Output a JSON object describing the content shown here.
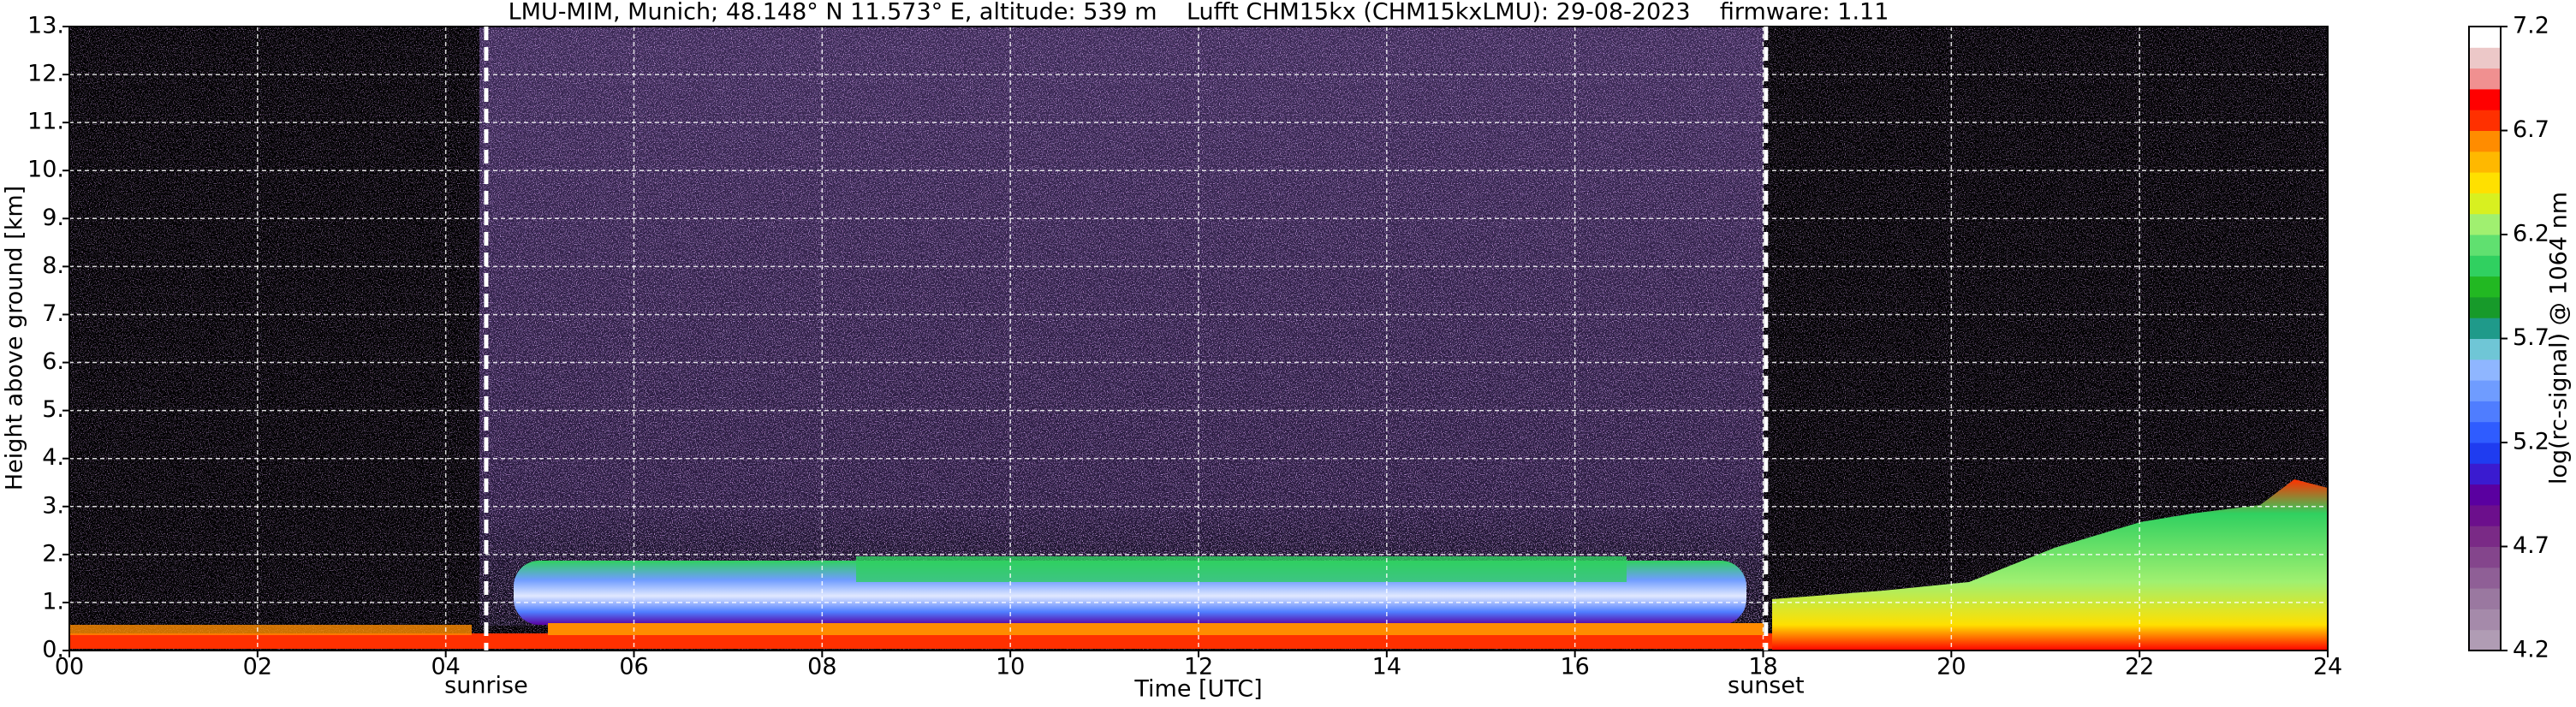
{
  "chart_data": {
    "type": "heatmap",
    "title": "LMU-MIM, Munich; 48.148° N 11.573° E, altitude: 539 m    Lufft CHM15kx (CHM15kxLMU): 29-08-2023    firmware: 1.11",
    "xlabel": "Time [UTC]",
    "ylabel": "Height above ground [km]",
    "xlim": [
      0,
      24
    ],
    "xticks": [
      {
        "value": 0,
        "label": "00"
      },
      {
        "value": 2,
        "label": "02"
      },
      {
        "value": 4,
        "label": "04"
      },
      {
        "value": 6,
        "label": "06"
      },
      {
        "value": 8,
        "label": "08"
      },
      10,
      12,
      14,
      16,
      18,
      20,
      22,
      24
    ],
    "ylim": [
      0,
      13
    ],
    "yticks": [
      {
        "value": 0,
        "label": "0."
      },
      {
        "value": 1,
        "label": "1."
      },
      {
        "value": 2,
        "label": "2."
      },
      {
        "value": 3,
        "label": "3."
      },
      {
        "value": 4,
        "label": "4."
      },
      {
        "value": 5,
        "label": "5."
      },
      {
        "value": 6,
        "label": "6."
      },
      {
        "value": 7,
        "label": "7."
      },
      {
        "value": 8,
        "label": "8."
      },
      {
        "value": 9,
        "label": "9."
      },
      {
        "value": 10,
        "label": "10."
      },
      {
        "value": 11,
        "label": "11."
      },
      {
        "value": 12,
        "label": "12."
      },
      {
        "value": 13,
        "label": "13."
      }
    ],
    "grid": true,
    "annotations": [
      {
        "text": "sunrise",
        "x": 4.43
      },
      {
        "text": "sunset",
        "x": 18.03
      }
    ],
    "colorbar": {
      "label": "log(rc-signal) @ 1064 nm",
      "clim": [
        4.2,
        7.2
      ],
      "ticks": [
        4.2,
        4.7,
        5.2,
        5.7,
        6.2,
        6.7,
        7.2
      ],
      "colors": [
        "#b09cb4",
        "#a58aaa",
        "#9a78a0",
        "#8f5f96",
        "#84458c",
        "#7a2a86",
        "#6c0f8c",
        "#5a00a0",
        "#3a1bd0",
        "#1f3cf0",
        "#2f5cff",
        "#4f7dff",
        "#6f9cff",
        "#8fb6ff",
        "#6fc6d6",
        "#1f9a8a",
        "#179a2a",
        "#22b822",
        "#30d060",
        "#60e070",
        "#a0f070",
        "#d8f020",
        "#ffe000",
        "#ffb800",
        "#ff8c00",
        "#ff3000",
        "#ff0000",
        "#f09090",
        "#ecc8c8",
        "#ffffff"
      ]
    }
  }
}
